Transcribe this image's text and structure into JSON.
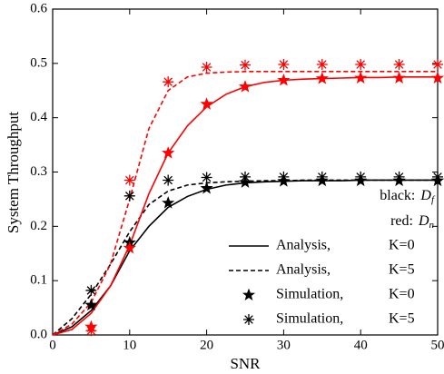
{
  "chart_data": {
    "type": "line",
    "x_label": "SNR",
    "y_label": "System Throughput",
    "xlim": [
      0,
      50
    ],
    "xticks": [
      0,
      10,
      20,
      30,
      40,
      50
    ],
    "ylim": [
      0,
      0.6
    ],
    "yticks": [
      {
        "value": 0,
        "label": "0.0"
      },
      0.1,
      0.2,
      0.3,
      0.4,
      0.5,
      0.6
    ],
    "x": [
      0,
      2.5,
      5,
      7.5,
      10,
      12.5,
      15,
      17.5,
      20,
      22.5,
      25,
      27.5,
      30,
      32.5,
      35,
      37.5,
      40,
      42.5,
      45,
      47.5,
      50
    ],
    "color_key": [
      {
        "label": "black:",
        "symbol": "D",
        "sub": "f"
      },
      {
        "label": "red:",
        "symbol": "D",
        "sub": "n"
      }
    ],
    "legend_entries": [
      {
        "label": "Analysis,",
        "param": "K=0",
        "style": "solid"
      },
      {
        "label": "Analysis,",
        "param": "K=5",
        "style": "dashed"
      },
      {
        "label": "Simulation,",
        "param": "K=0",
        "style": "star"
      },
      {
        "label": "Simulation,",
        "param": "K=5",
        "style": "asterisk"
      }
    ],
    "series": [
      {
        "color": "#000000",
        "style": "solid",
        "values": [
          0,
          0.015,
          0.045,
          0.09,
          0.155,
          0.2,
          0.235,
          0.255,
          0.268,
          0.276,
          0.28,
          0.282,
          0.283,
          0.284,
          0.284,
          0.284,
          0.285,
          0.285,
          0.285,
          0.285,
          0.285
        ]
      },
      {
        "color": "#000000",
        "style": "dashed",
        "values": [
          0,
          0.03,
          0.075,
          0.13,
          0.19,
          0.24,
          0.265,
          0.276,
          0.28,
          0.282,
          0.283,
          0.284,
          0.284,
          0.285,
          0.285,
          0.285,
          0.285,
          0.285,
          0.285,
          0.285,
          0.285
        ]
      },
      {
        "color": "#ff0000",
        "style": "solid",
        "values": [
          0,
          0.01,
          0.04,
          0.09,
          0.165,
          0.26,
          0.335,
          0.385,
          0.42,
          0.443,
          0.457,
          0.465,
          0.469,
          0.471,
          0.472,
          0.473,
          0.474,
          0.474,
          0.475,
          0.475,
          0.475
        ]
      },
      {
        "color": "#ff0000",
        "style": "dashed",
        "values": [
          0,
          0.02,
          0.06,
          0.13,
          0.25,
          0.38,
          0.45,
          0.475,
          0.482,
          0.484,
          0.485,
          0.485,
          0.485,
          0.485,
          0.485,
          0.485,
          0.485,
          0.485,
          0.485,
          0.485,
          0.485
        ]
      },
      {
        "color": "#000000",
        "style": "star",
        "x": [
          5,
          10,
          15,
          20,
          25,
          30,
          35,
          40,
          45,
          50
        ],
        "values": [
          0.055,
          0.17,
          0.243,
          0.27,
          0.281,
          0.283,
          0.284,
          0.284,
          0.284,
          0.284
        ]
      },
      {
        "color": "#000000",
        "style": "asterisk",
        "x": [
          5,
          10,
          15,
          20,
          25,
          30,
          35,
          40,
          45,
          50
        ],
        "values": [
          0.082,
          0.256,
          0.285,
          0.29,
          0.291,
          0.291,
          0.291,
          0.291,
          0.291,
          0.291
        ]
      },
      {
        "color": "#ff0000",
        "style": "star",
        "x": [
          5,
          10,
          15,
          20,
          25,
          30,
          35,
          40,
          45,
          50
        ],
        "values": [
          0.015,
          0.16,
          0.335,
          0.425,
          0.457,
          0.469,
          0.472,
          0.473,
          0.473,
          0.473
        ]
      },
      {
        "color": "#ff0000",
        "style": "asterisk",
        "x": [
          5,
          10,
          15,
          20,
          25,
          30,
          35,
          40,
          45,
          50
        ],
        "values": [
          0.008,
          0.285,
          0.466,
          0.493,
          0.497,
          0.498,
          0.498,
          0.498,
          0.498,
          0.498
        ]
      }
    ]
  }
}
